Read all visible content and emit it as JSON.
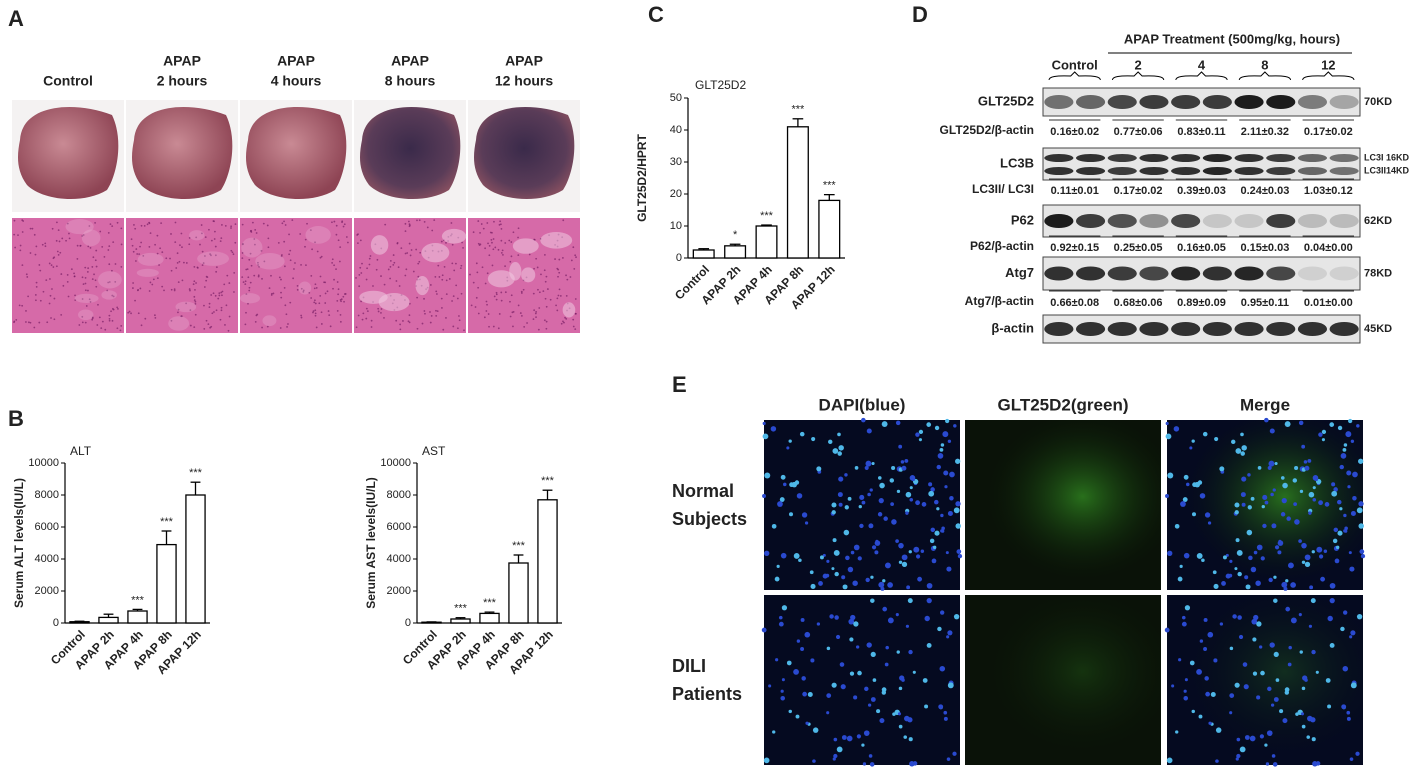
{
  "panel_labels": [
    "A",
    "B",
    "C",
    "D",
    "E"
  ],
  "panel_a": {
    "columns": [
      [
        "Control"
      ],
      [
        "APAP",
        "2 hours"
      ],
      [
        "APAP",
        "4 hours"
      ],
      [
        "APAP",
        "8 hours"
      ],
      [
        "APAP",
        "12 hours"
      ]
    ]
  },
  "chart_data": [
    {
      "type": "bar",
      "title": "ALT",
      "y_label": "Serum ALT levels(IU/L)",
      "categories": [
        "Control",
        "APAP 2h",
        "APAP 4h",
        "APAP 8h",
        "APAP 12h"
      ],
      "values": [
        80,
        350,
        750,
        4900,
        8000
      ],
      "errors": [
        30,
        200,
        100,
        850,
        800
      ],
      "annotations": [
        null,
        null,
        "***",
        "***",
        "***"
      ],
      "color": "#ffffff",
      "ylim": [
        0,
        10000
      ],
      "yticks": [
        0,
        2000,
        4000,
        6000,
        8000,
        10000
      ]
    },
    {
      "type": "bar",
      "title": "AST",
      "y_label": "Serum AST levels(IU/L)",
      "categories": [
        "Control",
        "APAP 2h",
        "APAP 4h",
        "APAP 8h",
        "APAP 12h"
      ],
      "values": [
        50,
        250,
        600,
        3750,
        7700
      ],
      "errors": [
        20,
        80,
        80,
        500,
        600
      ],
      "annotations": [
        null,
        "***",
        "***",
        "***",
        "***"
      ],
      "color": "#ffffff",
      "ylim": [
        0,
        10000
      ],
      "yticks": [
        0,
        2000,
        4000,
        6000,
        8000,
        10000
      ]
    },
    {
      "type": "bar",
      "title": "GLT25D2",
      "y_label": "GLT25D2/HPRT",
      "categories": [
        "Control",
        "APAP 2h",
        "APAP 4h",
        "APAP 8h",
        "APAP 12h"
      ],
      "values": [
        2.5,
        3.8,
        10,
        41,
        18
      ],
      "errors": [
        0.4,
        0.5,
        0.3,
        2.5,
        1.8
      ],
      "annotations": [
        null,
        "*",
        "***",
        "***",
        "***"
      ],
      "color": "#ffffff",
      "ylim": [
        0,
        50
      ],
      "yticks": [
        0,
        10,
        20,
        30,
        40,
        50
      ]
    }
  ],
  "panel_d": {
    "treatment": "APAP Treatment (500mg/kg, hours)",
    "groups": [
      "Control",
      "2",
      "4",
      "8",
      "12"
    ],
    "rows": [
      {
        "label": "GLT25D2",
        "sizes": [
          "70KD"
        ]
      },
      {
        "label": "GLT25D2/β-actin",
        "ratios": [
          "0.16±0.02",
          "0.77±0.06",
          "0.83±0.11",
          "2.11±0.32",
          "0.17±0.02"
        ]
      },
      {
        "label": "LC3B",
        "sizes": [
          "LC3I 16KD",
          "LC3II14KD"
        ]
      },
      {
        "label": "LC3II/ LC3I",
        "ratios": [
          "0.11±0.01",
          "0.17±0.02",
          "0.39±0.03",
          "0.24±0.03",
          "1.03±0.12"
        ]
      },
      {
        "label": "P62",
        "sizes": [
          "62KD"
        ]
      },
      {
        "label": "P62/β-actin",
        "ratios": [
          "0.92±0.15",
          "0.25±0.05",
          "0.16±0.05",
          "0.15±0.03",
          "0.04±0.00"
        ]
      },
      {
        "label": "Atg7",
        "sizes": [
          "78KD"
        ]
      },
      {
        "label": "Atg7/β-actin",
        "ratios": [
          "0.66±0.08",
          "0.68±0.06",
          "0.89±0.09",
          "0.95±0.11",
          "0.01±0.00"
        ]
      },
      {
        "label": "β-actin",
        "sizes": [
          "45KD"
        ]
      }
    ]
  },
  "panel_e": {
    "columns": [
      "DAPI(blue)",
      "GLT25D2(green)",
      "Merge"
    ],
    "rows": [
      [
        "Normal",
        "Subjects"
      ],
      [
        "DILI",
        "Patients"
      ]
    ]
  }
}
